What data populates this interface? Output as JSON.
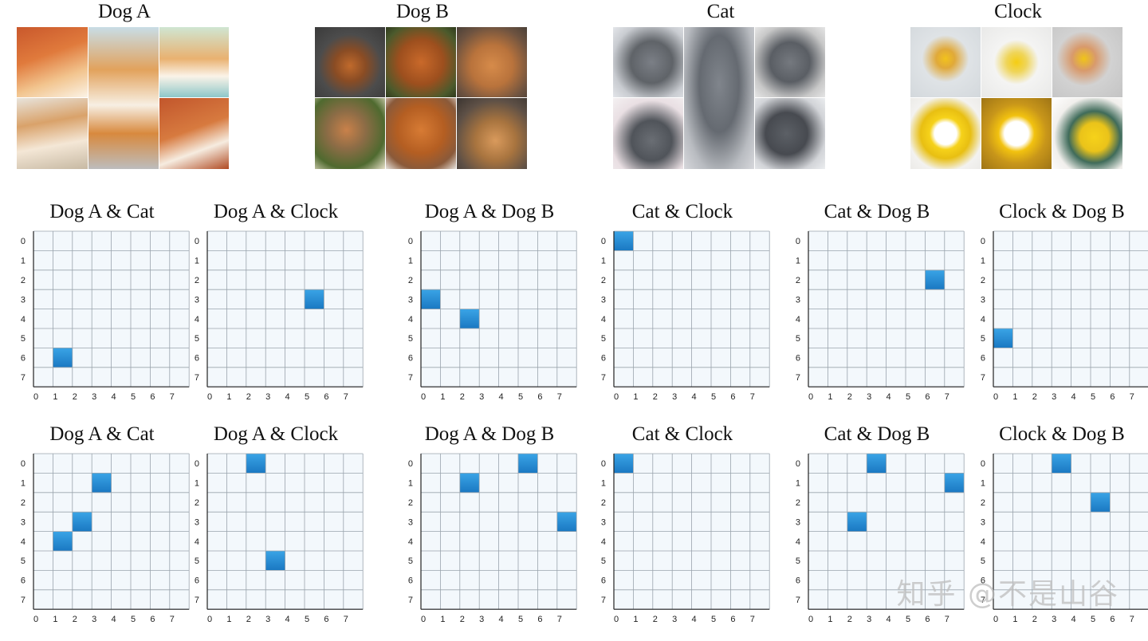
{
  "concepts": [
    {
      "title": "Dog A",
      "image": "corgi-photo-mosaic"
    },
    {
      "title": "Dog B",
      "image": "chow-chow-photo-mosaic"
    },
    {
      "title": "Cat",
      "image": "gray-cat-photo-mosaic"
    },
    {
      "title": "Clock",
      "image": "yellow-alarm-clock-photo-mosaic"
    }
  ],
  "grid_labels": [
    "0",
    "1",
    "2",
    "3",
    "4",
    "5",
    "6",
    "7"
  ],
  "rows": [
    [
      {
        "title": "Dog A & Cat",
        "cells": [
          [
            6,
            1
          ]
        ]
      },
      {
        "title": "Dog A & Clock",
        "cells": [
          [
            3,
            5
          ]
        ]
      },
      {
        "title": "Dog A & Dog B",
        "cells": [
          [
            3,
            0
          ],
          [
            4,
            2
          ]
        ]
      },
      {
        "title": "Cat & Clock",
        "cells": [
          [
            0,
            0
          ]
        ]
      },
      {
        "title": "Cat & Dog B",
        "cells": [
          [
            2,
            6
          ]
        ]
      },
      {
        "title": "Clock & Dog B",
        "cells": [
          [
            5,
            0
          ]
        ]
      }
    ],
    [
      {
        "title": "Dog A & Cat",
        "cells": [
          [
            1,
            3
          ],
          [
            3,
            2
          ],
          [
            4,
            1
          ]
        ]
      },
      {
        "title": "Dog A & Clock",
        "cells": [
          [
            0,
            2
          ],
          [
            5,
            3
          ]
        ]
      },
      {
        "title": "Dog A & Dog B",
        "cells": [
          [
            0,
            5
          ],
          [
            1,
            2
          ],
          [
            3,
            7
          ]
        ]
      },
      {
        "title": "Cat & Clock",
        "cells": [
          [
            0,
            0
          ]
        ]
      },
      {
        "title": "Cat & Dog B",
        "cells": [
          [
            0,
            3
          ],
          [
            1,
            7
          ],
          [
            3,
            2
          ]
        ]
      },
      {
        "title": "Clock & Dog B",
        "cells": [
          [
            0,
            3
          ],
          [
            2,
            5
          ]
        ]
      }
    ]
  ],
  "colors": {
    "grid_bg": "#f3f8fc",
    "grid_line": "#9aa4ad",
    "cell_top": "#3aa4e6",
    "cell_bottom": "#1a78c2"
  },
  "watermark": "知乎 @不是山谷"
}
